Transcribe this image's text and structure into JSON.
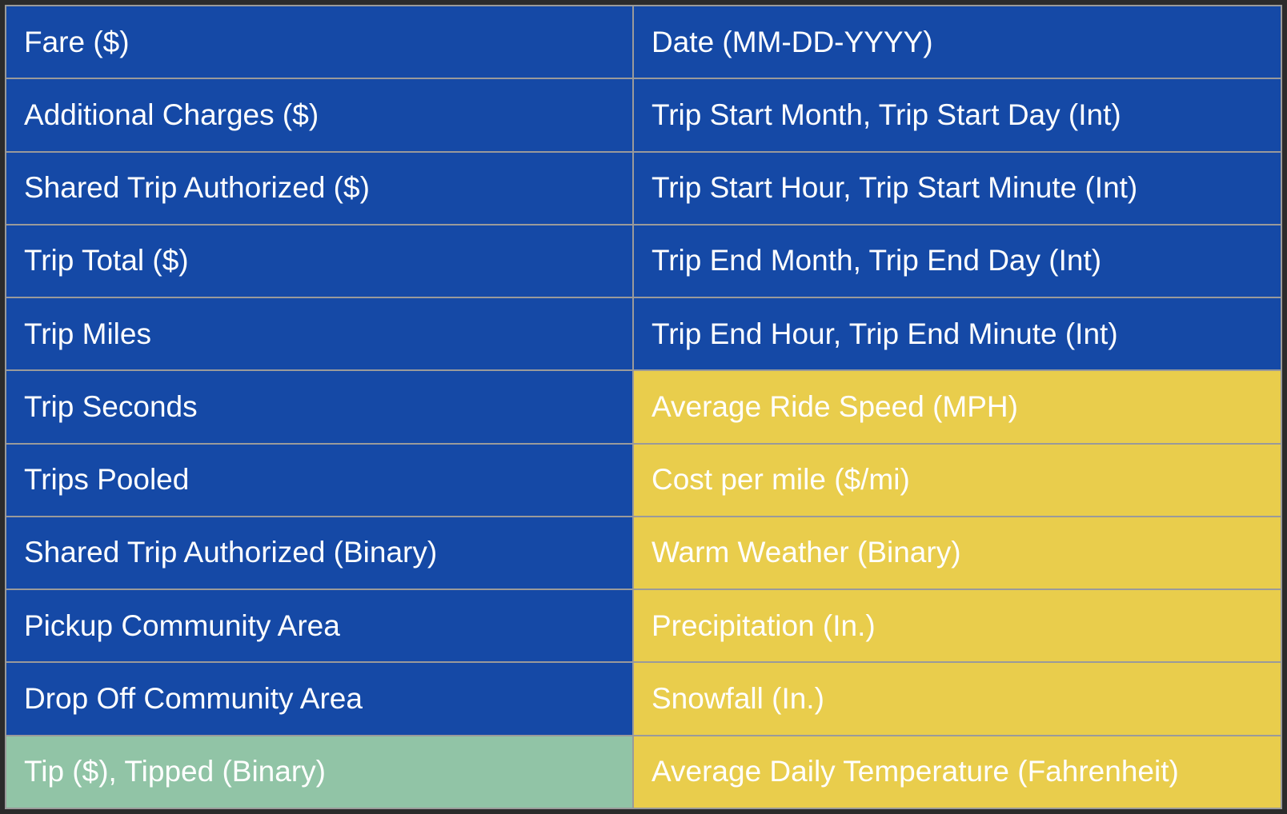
{
  "colors": {
    "blue": "#1549a6",
    "yellow": "#e9cd4c",
    "green": "#91c4a6",
    "text": "#ffffff",
    "grid": "#9a9a9a",
    "frame": "#2b2b2b"
  },
  "rows": [
    {
      "left": {
        "text": "Fare ($)",
        "color": "blue"
      },
      "right": {
        "text": "Date (MM-DD-YYYY)",
        "color": "blue"
      }
    },
    {
      "left": {
        "text": "Additional Charges ($)",
        "color": "blue"
      },
      "right": {
        "text": "Trip Start Month, Trip Start Day (Int)",
        "color": "blue"
      }
    },
    {
      "left": {
        "text": "Shared Trip Authorized ($)",
        "color": "blue"
      },
      "right": {
        "text": "Trip Start Hour, Trip Start Minute (Int)",
        "color": "blue"
      }
    },
    {
      "left": {
        "text": "Trip Total ($)",
        "color": "blue"
      },
      "right": {
        "text": "Trip End Month, Trip End Day (Int)",
        "color": "blue"
      }
    },
    {
      "left": {
        "text": "Trip Miles",
        "color": "blue"
      },
      "right": {
        "text": "Trip End Hour, Trip End Minute (Int)",
        "color": "blue"
      }
    },
    {
      "left": {
        "text": "Trip Seconds",
        "color": "blue"
      },
      "right": {
        "text": "Average Ride Speed (MPH)",
        "color": "yellow"
      }
    },
    {
      "left": {
        "text": "Trips Pooled",
        "color": "blue"
      },
      "right": {
        "text": "Cost per mile ($/mi)",
        "color": "yellow"
      }
    },
    {
      "left": {
        "text": "Shared Trip Authorized (Binary)",
        "color": "blue"
      },
      "right": {
        "text": "Warm Weather (Binary)",
        "color": "yellow"
      }
    },
    {
      "left": {
        "text": "Pickup Community Area",
        "color": "blue"
      },
      "right": {
        "text": "Precipitation (In.)",
        "color": "yellow"
      }
    },
    {
      "left": {
        "text": "Drop Off Community Area",
        "color": "blue"
      },
      "right": {
        "text": "Snowfall (In.)",
        "color": "yellow"
      }
    },
    {
      "left": {
        "text": "Tip ($), Tipped (Binary)",
        "color": "green"
      },
      "right": {
        "text": "Average Daily Temperature (Fahrenheit)",
        "color": "yellow"
      }
    }
  ]
}
